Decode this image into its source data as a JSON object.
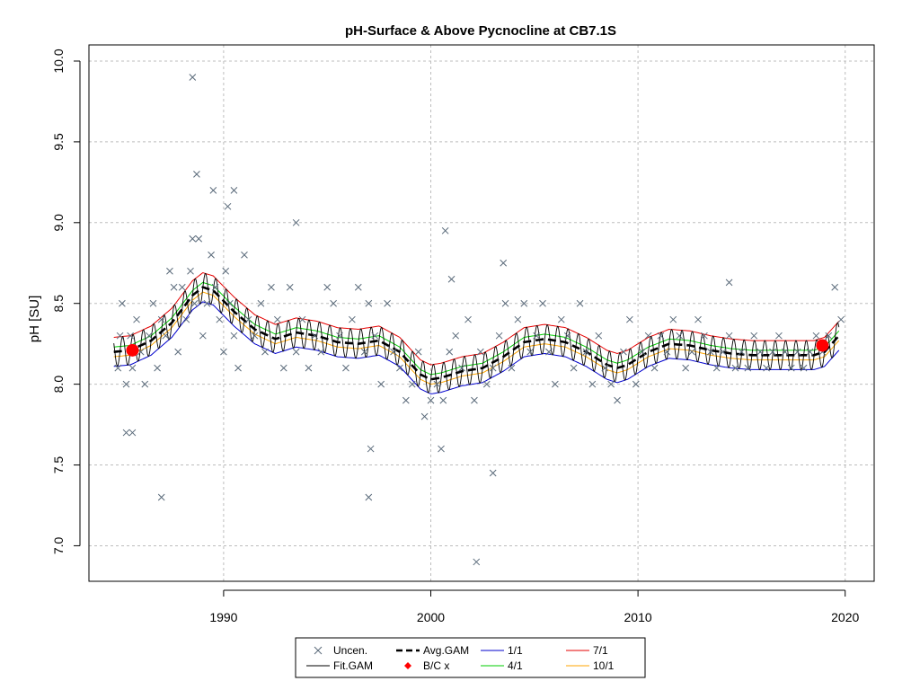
{
  "chart_data": {
    "type": "line",
    "title": "pH-Surface & Above Pycnocline at CB7.1S",
    "xlabel": "",
    "ylabel": "pH [SU]",
    "xlim": [
      1983.5,
      2021.4
    ],
    "ylim": [
      6.78,
      10.1
    ],
    "x_ticks": [
      1990,
      2000,
      2010,
      2020
    ],
    "y_ticks": [
      7.0,
      7.5,
      8.0,
      8.5,
      9.0,
      9.5,
      10.0
    ],
    "x_tick_labels": [
      "1990",
      "2000",
      "2010",
      "2020"
    ],
    "y_tick_labels": [
      "7.0",
      "7.5",
      "8.0",
      "8.5",
      "9.0",
      "9.5",
      "10.0"
    ],
    "grid": true,
    "legend_position": "bottom",
    "legend": [
      {
        "label": "Uncen.",
        "kind": "cross",
        "color": "#5a6a7a"
      },
      {
        "label": "Fit.GAM",
        "kind": "line",
        "color": "#000000"
      },
      {
        "label": "Avg.GAM",
        "kind": "dashed",
        "color": "#000000"
      },
      {
        "label": "B/C x",
        "kind": "diamond",
        "color": "#ff0000"
      },
      {
        "label": "1/1",
        "kind": "line",
        "color": "#0000cd"
      },
      {
        "label": "4/1",
        "kind": "line",
        "color": "#00cd00"
      },
      {
        "label": "7/1",
        "kind": "line",
        "color": "#e60000"
      },
      {
        "label": "10/1",
        "kind": "line",
        "color": "#ffa500"
      }
    ],
    "avg_gam": {
      "name": "Avg.GAM",
      "x": [
        1984.7,
        1985.5,
        1986.5,
        1987.5,
        1988.5,
        1989.0,
        1989.5,
        1990.5,
        1991.5,
        1992.5,
        1993.5,
        1994.5,
        1995.5,
        1996.5,
        1997.5,
        1998.5,
        1999.5,
        2000.0,
        2000.5,
        2001.5,
        2002.5,
        2003.5,
        2004.5,
        2005.5,
        2006.5,
        2007.5,
        2008.5,
        2009.0,
        2009.5,
        2010.5,
        2011.5,
        2012.5,
        2013.5,
        2014.5,
        2015.5,
        2016.5,
        2017.5,
        2018.5,
        2019.0,
        2019.7
      ],
      "y": [
        8.2,
        8.21,
        8.27,
        8.38,
        8.55,
        8.6,
        8.58,
        8.45,
        8.34,
        8.28,
        8.32,
        8.3,
        8.26,
        8.25,
        8.27,
        8.2,
        8.06,
        8.03,
        8.04,
        8.08,
        8.1,
        8.17,
        8.26,
        8.28,
        8.26,
        8.2,
        8.12,
        8.1,
        8.12,
        8.2,
        8.25,
        8.24,
        8.21,
        8.19,
        8.18,
        8.18,
        8.18,
        8.18,
        8.2,
        8.3
      ]
    },
    "series": [
      {
        "name": "1/1",
        "color": "#0000cd",
        "offset": -0.09
      },
      {
        "name": "4/1",
        "color": "#00cd00",
        "offset": 0.03
      },
      {
        "name": "7/1",
        "color": "#e60000",
        "offset": 0.09
      },
      {
        "name": "10/1",
        "color": "#ffa500",
        "offset": -0.03
      }
    ],
    "fit_gam_amplitude": 0.09,
    "bc_points": [
      {
        "x": 1985.6,
        "y": 8.21
      },
      {
        "x": 2018.9,
        "y": 8.24
      }
    ],
    "observations": {
      "x": [
        1984.9,
        1985.0,
        1985.1,
        1985.3,
        1985.5,
        1985.6,
        1985.8,
        1986.0,
        1986.2,
        1986.4,
        1986.6,
        1986.8,
        1987.0,
        1987.2,
        1987.4,
        1987.6,
        1987.8,
        1988.0,
        1988.2,
        1988.4,
        1988.5,
        1988.6,
        1988.8,
        1989.0,
        1989.2,
        1989.4,
        1989.6,
        1989.8,
        1990.0,
        1990.1,
        1990.3,
        1990.5,
        1990.7,
        1991.0,
        1991.2,
        1991.5,
        1991.8,
        1992.0,
        1992.3,
        1992.6,
        1992.9,
        1993.2,
        1993.5,
        1993.8,
        1994.1,
        1994.4,
        1994.7,
        1995.0,
        1995.3,
        1995.6,
        1995.9,
        1996.2,
        1996.5,
        1996.8,
        1997.0,
        1997.3,
        1997.6,
        1997.9,
        1998.2,
        1998.5,
        1998.8,
        1999.1,
        1999.4,
        1999.7,
        2000.0,
        2000.3,
        2000.6,
        2000.9,
        2001.2,
        2001.5,
        2001.8,
        2002.1,
        2002.4,
        2002.7,
        2003.0,
        2003.3,
        2003.6,
        2003.9,
        2004.2,
        2004.5,
        2004.8,
        2005.1,
        2005.4,
        2005.7,
        2006.0,
        2006.3,
        2006.6,
        2006.9,
        2007.2,
        2007.5,
        2007.8,
        2008.1,
        2008.4,
        2008.7,
        2009.0,
        2009.3,
        2009.6,
        2009.9,
        2010.2,
        2010.5,
        2010.8,
        2011.1,
        2011.4,
        2011.7,
        2012.0,
        2012.3,
        2012.6,
        2012.9,
        2013.2,
        2013.5,
        2013.8,
        2014.1,
        2014.4,
        2014.7,
        2015.0,
        2015.3,
        2015.6,
        2015.9,
        2016.2,
        2016.5,
        2016.8,
        2017.1,
        2017.4,
        2017.7,
        2018.0,
        2018.3,
        2018.6,
        2018.9,
        2019.2,
        2019.5,
        2019.8,
        1988.5,
        1988.7,
        1989.5,
        1990.2,
        1990.5,
        1985.3,
        1985.6,
        1987.0,
        2000.5,
        2002.2,
        2003.5,
        2003.0,
        1993.5,
        1997.0,
        1997.1,
        2000.7,
        2001.0,
        2014.4
      ],
      "y": [
        8.1,
        8.3,
        8.5,
        8.0,
        8.3,
        8.1,
        8.4,
        8.2,
        8.0,
        8.3,
        8.5,
        8.1,
        8.4,
        8.3,
        8.7,
        8.6,
        8.2,
        8.6,
        8.4,
        8.7,
        8.9,
        8.5,
        8.9,
        8.3,
        8.5,
        8.8,
        8.6,
        8.4,
        8.2,
        8.7,
        8.5,
        8.3,
        8.1,
        8.8,
        8.4,
        8.3,
        8.5,
        8.2,
        8.6,
        8.4,
        8.1,
        8.6,
        8.2,
        8.4,
        8.1,
        8.3,
        8.2,
        8.6,
        8.5,
        8.3,
        8.1,
        8.4,
        8.6,
        8.2,
        8.5,
        8.3,
        8.0,
        8.5,
        8.2,
        8.1,
        7.9,
        8.0,
        8.2,
        7.8,
        7.9,
        8.0,
        7.9,
        8.2,
        8.3,
        8.1,
        8.4,
        7.9,
        8.2,
        8.0,
        8.1,
        8.3,
        8.5,
        8.1,
        8.4,
        8.5,
        8.2,
        8.3,
        8.5,
        8.2,
        8.0,
        8.4,
        8.3,
        8.1,
        8.5,
        8.2,
        8.0,
        8.3,
        8.1,
        8.0,
        7.9,
        8.2,
        8.4,
        8.0,
        8.2,
        8.3,
        8.1,
        8.3,
        8.2,
        8.4,
        8.3,
        8.1,
        8.2,
        8.4,
        8.3,
        8.2,
        8.1,
        8.2,
        8.3,
        8.1,
        8.2,
        8.1,
        8.3,
        8.2,
        8.1,
        8.2,
        8.3,
        8.2,
        8.1,
        8.2,
        8.1,
        8.2,
        8.3,
        8.2,
        8.3,
        8.6,
        8.4,
        9.9,
        9.3,
        9.2,
        9.1,
        9.2,
        7.7,
        7.7,
        7.3,
        7.6,
        6.9,
        8.75,
        7.45,
        9.0,
        7.3,
        7.6,
        8.95,
        8.65,
        8.63
      ]
    }
  }
}
